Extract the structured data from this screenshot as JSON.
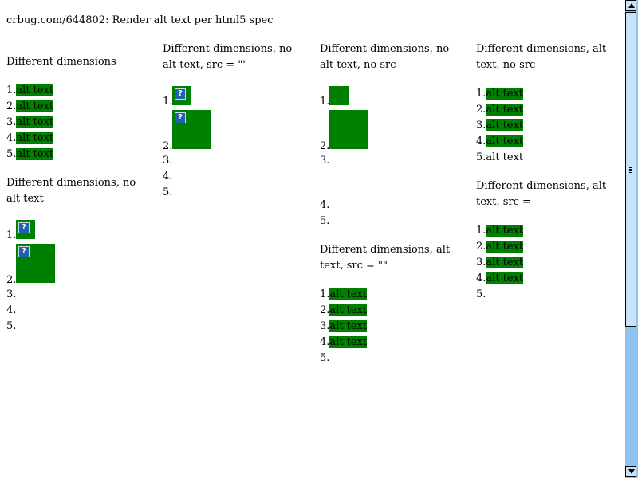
{
  "page": {
    "title": "crbug.com/644802: Render alt text per html5 spec"
  },
  "alt_text": "alt text",
  "markers": [
    "1.",
    "2.",
    "3.",
    "4.",
    "5."
  ],
  "sections": {
    "dims": {
      "heading": "Different dimensions"
    },
    "dims_no_alt": {
      "heading": "Different dimensions, no alt text"
    },
    "dims_no_alt_src_empty": {
      "heading": "Different dimensions, no alt text, src = \"\""
    },
    "dims_no_alt_no_src": {
      "heading": "Different dimensions, no alt text, no src"
    },
    "dims_alt_src_empty": {
      "heading": "Different dimensions, alt text, src = \"\""
    },
    "dims_alt_no_src": {
      "heading": "Different dimensions, alt text, no src"
    },
    "dims_alt_src_eq": {
      "heading": "Different dimensions, alt text, src ="
    }
  },
  "icons": {
    "broken_image": "broken-image-icon",
    "scroll_up": "arrow-up-icon",
    "scroll_down": "arrow-down-icon"
  },
  "colors": {
    "image_fill": "#008000",
    "scrollbar_track": "#8fc3f0",
    "scrollbar_thumb": "#c7e2fb",
    "broken_icon": "#1c62b0"
  }
}
